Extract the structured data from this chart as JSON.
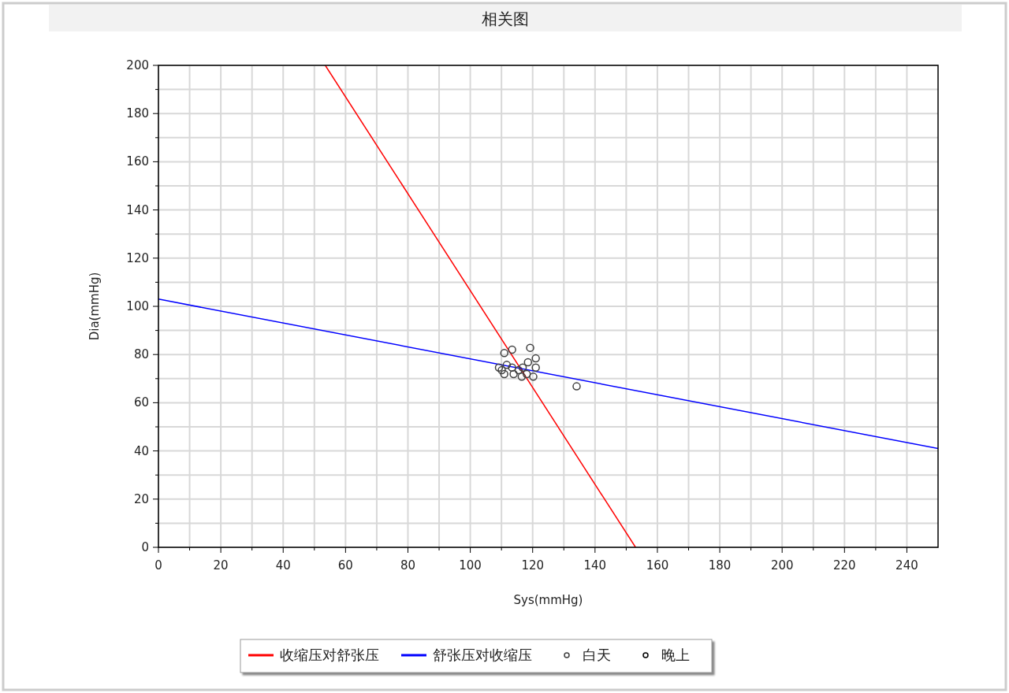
{
  "chart_data": {
    "type": "scatter",
    "title": "相关图",
    "xlabel": "Sys(mmHg)",
    "ylabel": "Dia(mmHg)",
    "xlim": [
      0,
      250
    ],
    "ylim": [
      0,
      200
    ],
    "xticks": [
      0,
      {
        "value": 10,
        "label": null
      },
      20,
      {
        "value": 30,
        "label": null
      },
      40,
      {
        "value": 50,
        "label": null
      },
      60,
      {
        "value": 70,
        "label": null
      },
      80,
      {
        "value": 90,
        "label": null
      },
      100,
      {
        "value": 110,
        "label": null
      },
      120,
      {
        "value": 130,
        "label": null
      },
      140,
      {
        "value": 150,
        "label": null
      },
      160,
      {
        "value": 170,
        "label": null
      },
      180,
      {
        "value": 190,
        "label": null
      },
      200,
      {
        "value": 210,
        "label": null
      },
      220,
      {
        "value": 230,
        "label": null
      },
      240
    ],
    "yticks": [
      0,
      {
        "value": 10,
        "label": null
      },
      20,
      {
        "value": 30,
        "label": null
      },
      40,
      {
        "value": 50,
        "label": null
      },
      60,
      {
        "value": 70,
        "label": null
      },
      80,
      {
        "value": 90,
        "label": null
      },
      100,
      {
        "value": 110,
        "label": null
      },
      120,
      {
        "value": 130,
        "label": null
      },
      140,
      {
        "value": 150,
        "label": null
      },
      160,
      {
        "value": 170,
        "label": null
      },
      180,
      {
        "value": 190,
        "label": null
      },
      200
    ],
    "grid": true,
    "legend": "bottom",
    "series": [
      {
        "name": "收缩压对舒张压",
        "type": "line",
        "color": "#ff0000",
        "x": [
          53.5,
          153
        ],
        "values": [
          200,
          0
        ]
      },
      {
        "name": "舒张压对收缩压",
        "type": "line",
        "color": "#0000ff",
        "x": [
          0,
          250
        ],
        "values": [
          103,
          41
        ]
      },
      {
        "name": "白天",
        "color": "#404040",
        "marker": "circle",
        "x": [
          110.9,
          113.4,
          119.2,
          121.0,
          118.5,
          109.2,
          111.7,
          113.4,
          116.8,
          121.0,
          110.9,
          113.9,
          116.5,
          118.1,
          120.2,
          134.1,
          110.1,
          115.5
        ],
        "values": [
          80.6,
          82.0,
          82.8,
          78.4,
          76.8,
          74.6,
          75.7,
          74.6,
          74.6,
          74.6,
          71.9,
          71.9,
          70.8,
          71.9,
          70.8,
          66.8,
          73.5,
          73.5
        ]
      },
      {
        "name": "晚上",
        "color": "#000000",
        "marker": "circle"
      }
    ]
  }
}
